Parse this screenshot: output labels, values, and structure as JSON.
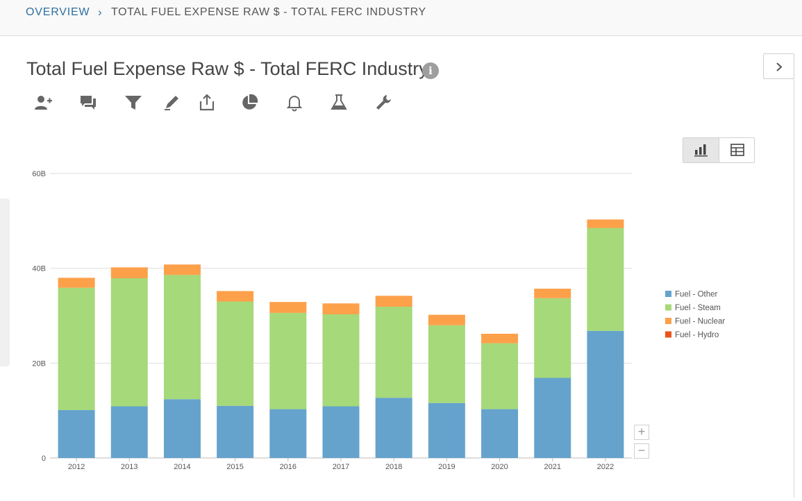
{
  "breadcrumb": {
    "root": "OVERVIEW",
    "current": "TOTAL FUEL EXPENSE RAW $ - TOTAL FERC INDUSTRY"
  },
  "page": {
    "title": "Total Fuel Expense Raw $ - Total FERC Industry"
  },
  "toolbar": {
    "icons": [
      "add-user-icon",
      "comments-icon",
      "filter-icon",
      "edit-icon",
      "share-icon",
      "pie-chart-icon",
      "bell-icon",
      "flask-icon",
      "wrench-icon"
    ]
  },
  "view_toggle": {
    "active": "chart",
    "options": [
      "chart",
      "table"
    ]
  },
  "zoom": {
    "in": "+",
    "out": "−"
  },
  "colors": {
    "Fuel - Other": "#65a3cd",
    "Fuel - Steam": "#a6d979",
    "Fuel - Nuclear": "#fda04a",
    "Fuel - Hydro": "#e9541c"
  },
  "chart_data": {
    "type": "bar",
    "stacked": true,
    "title": "",
    "xlabel": "",
    "ylabel": "",
    "ylim": [
      0,
      60
    ],
    "yticks": [
      "0",
      "20B",
      "40B",
      "60B"
    ],
    "ytick_values": [
      0,
      20,
      40,
      60
    ],
    "grid": true,
    "legend_position": "right",
    "categories": [
      "2012",
      "2013",
      "2014",
      "2015",
      "2016",
      "2017",
      "2018",
      "2019",
      "2020",
      "2021",
      "2022"
    ],
    "series": [
      {
        "name": "Fuel - Other",
        "values": [
          10.1,
          10.9,
          12.4,
          11.0,
          10.3,
          10.9,
          12.7,
          11.6,
          10.3,
          16.9,
          26.8
        ]
      },
      {
        "name": "Fuel - Steam",
        "values": [
          25.8,
          27.0,
          26.2,
          22.0,
          20.3,
          19.4,
          19.2,
          16.4,
          13.9,
          16.8,
          21.7
        ]
      },
      {
        "name": "Fuel - Nuclear",
        "values": [
          2.1,
          2.3,
          2.2,
          2.2,
          2.3,
          2.3,
          2.3,
          2.2,
          2.0,
          2.0,
          1.8
        ]
      },
      {
        "name": "Fuel - Hydro",
        "values": [
          0,
          0,
          0,
          0,
          0,
          0,
          0,
          0,
          0,
          0,
          0
        ]
      }
    ]
  }
}
